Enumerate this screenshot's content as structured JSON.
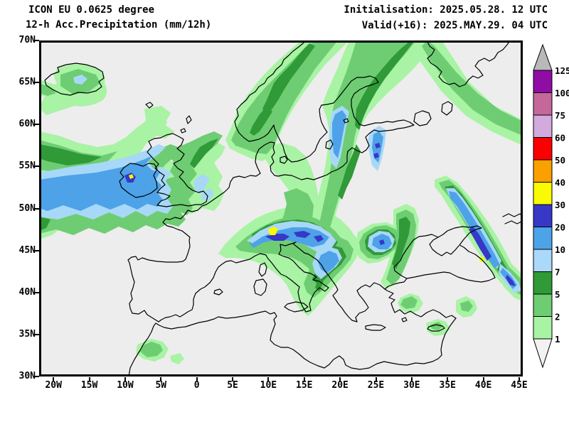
{
  "header": {
    "model_line": "ICON EU 0.0625 degree",
    "product_line": "12-h Acc.Precipitation (mm/12h)",
    "init_line": "Initialisation: 2025.05.28. 12 UTC",
    "valid_line": "Valid(+16): 2025.MAY.29. 04 UTC"
  },
  "map": {
    "lat_labels": [
      "70N",
      "65N",
      "60N",
      "55N",
      "50N",
      "45N",
      "40N",
      "35N",
      "30N"
    ],
    "lon_labels": [
      "20W",
      "15W",
      "10W",
      "5W",
      "0",
      "5E",
      "10E",
      "15E",
      "20E",
      "25E",
      "30E",
      "35E",
      "40E",
      "45E"
    ]
  },
  "colorbar": {
    "labels": [
      "125",
      "100",
      "75",
      "60",
      "50",
      "40",
      "30",
      "20",
      "10",
      "7",
      "5",
      "2",
      "1"
    ],
    "blocks": [
      {
        "level": "100-125",
        "color": "#8f0da5"
      },
      {
        "level": "75-100",
        "color": "#c6679b"
      },
      {
        "level": "60-75",
        "color": "#d2aadd"
      },
      {
        "level": "50-60",
        "color": "#fa0000"
      },
      {
        "level": "40-50",
        "color": "#faa000"
      },
      {
        "level": "30-40",
        "color": "#fafa00"
      },
      {
        "level": "20-30",
        "color": "#3737c8"
      },
      {
        "level": "10-20",
        "color": "#4da3e8"
      },
      {
        "level": "7-10",
        "color": "#aad9fa"
      },
      {
        "level": "5-7",
        "color": "#2f9a37"
      },
      {
        "level": "2-5",
        "color": "#6ecd72"
      },
      {
        "level": "1-2",
        "color": "#a9f3a4"
      }
    ],
    "overflow_color": "#b9b9b9",
    "underflow_color": "#f2f2f2"
  }
}
